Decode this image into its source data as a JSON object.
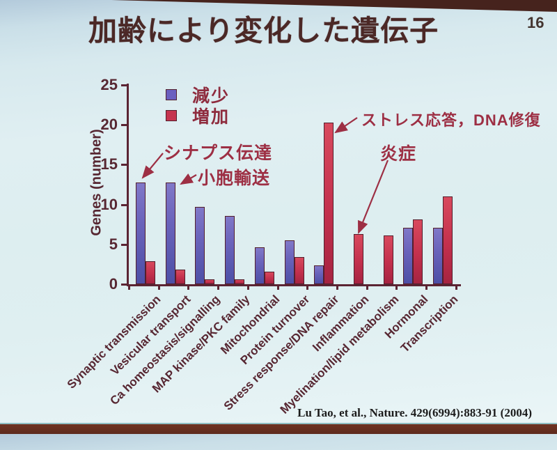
{
  "slide": {
    "title": "加齢により変化した遺伝子",
    "page_number": "16",
    "citation": "Lu Tao, et al., Nature. 429(6994):883-91 (2004)"
  },
  "legend": {
    "decrease_label": "減少",
    "increase_label": "増加"
  },
  "annotations": [
    {
      "text": "シナプス伝達"
    },
    {
      "text": "小胞輸送"
    },
    {
      "text": "ストレス応答，DNA修復"
    },
    {
      "text": "炎症"
    }
  ],
  "colors": {
    "decrease_bar": "#6a63bb",
    "increase_bar": "#c3304d",
    "axis_text": "#572732",
    "annotation_text": "#9d2f44",
    "title_text": "#4b2826",
    "top_band": "#46231d",
    "bottom_band": "#6f3322",
    "slide_background": "#dfeef1"
  },
  "chart_data": {
    "type": "bar",
    "title": "",
    "xlabel": "",
    "ylabel": "Genes (number)",
    "ylim": [
      0,
      25
    ],
    "yticks": [
      0,
      5,
      10,
      15,
      20,
      25
    ],
    "grid": false,
    "legend_position": "upper left",
    "categories": [
      "Synaptic transmission",
      "Vesicular transport",
      "Ca homeostasis/signalling",
      "MAP kinase/PKC family",
      "Mitochondrial",
      "Protein turnover",
      "Stress response/DNA repair",
      "Inflammation",
      "Myelination/lipid metabolism",
      "Hormonal",
      "Transcription"
    ],
    "series": [
      {
        "name": "減少",
        "color": "#6a63bb",
        "values": [
          12.8,
          12.8,
          9.7,
          8.6,
          4.6,
          5.5,
          2.4,
          0,
          0,
          7.1,
          7.1
        ]
      },
      {
        "name": "増加",
        "color": "#c3304d",
        "values": [
          2.9,
          1.8,
          0.6,
          0.6,
          1.6,
          3.4,
          20.3,
          6.3,
          6.1,
          8.1,
          11.0
        ]
      }
    ]
  }
}
